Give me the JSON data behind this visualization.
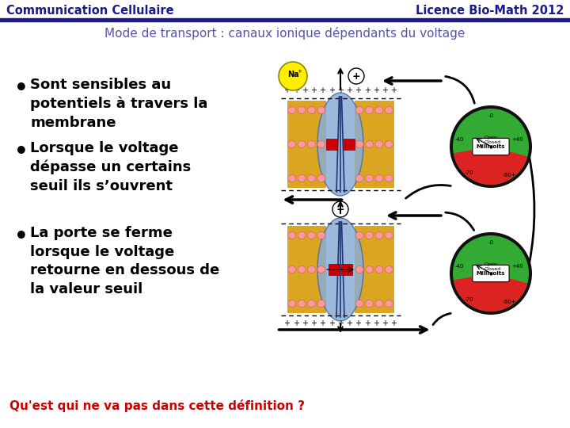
{
  "title_left": "Communication Cellulaire",
  "title_right": "Licence Bio-Math 2012",
  "subtitle": "Mode de transport : canaux ionique dépendants du voltage",
  "bullets": [
    "Sont sensibles au\npotentiels à travers la\nmembrane",
    "Lorsque le voltage\ndépasse un certains\nseuil ils s’ouvrent",
    "La porte se ferme\nlorsque le voltage\nretourne en dessous de\nla valeur seuil"
  ],
  "question": "Qu'est qui ne va pas dans cette définition ?",
  "bg_color": "#ffffff",
  "header_line_color": "#1a1a8c",
  "title_color": "#1a1a8c",
  "subtitle_color": "#5555aa",
  "bullet_color": "#000000",
  "question_color": "#cc0000"
}
